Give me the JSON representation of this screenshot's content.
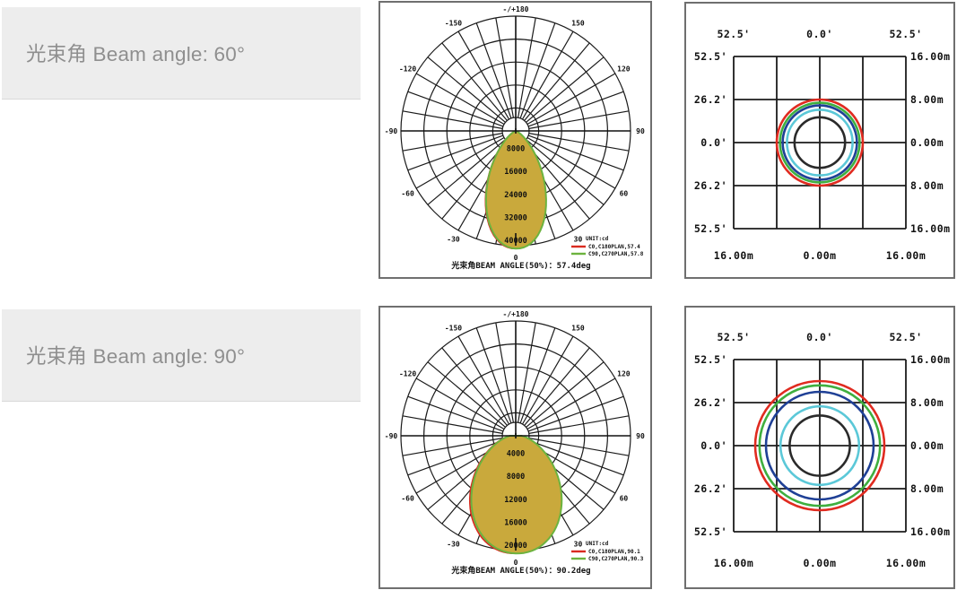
{
  "rows": [
    {
      "label": "光束角 Beam angle: 60°",
      "polar": {
        "top_label": "-/+180",
        "bottom_label": "0",
        "angle_labels": [
          {
            "deg": -150,
            "text": "-150"
          },
          {
            "deg": -120,
            "text": "-120"
          },
          {
            "deg": -90,
            "text": "-90"
          },
          {
            "deg": -60,
            "text": "-60"
          },
          {
            "deg": -30,
            "text": "-30"
          },
          {
            "deg": 30,
            "text": "30"
          },
          {
            "deg": 60,
            "text": "60"
          },
          {
            "deg": 90,
            "text": "90"
          },
          {
            "deg": 120,
            "text": "120"
          },
          {
            "deg": 150,
            "text": "150"
          }
        ],
        "unit_label": "UNIT:cd",
        "legend": [
          {
            "text": "C0,C180PLAN,57.4",
            "color": "#d92b20"
          },
          {
            "text": "C90,C270PLAN,57.8",
            "color": "#6cb33f"
          }
        ],
        "caption": "光束角BEAM ANGLE(50%)：57.4deg"
      },
      "spot": {
        "top_labels": [
          "52.5'",
          "0.0'",
          "52.5'"
        ],
        "left_labels": [
          "52.5'",
          "26.2'",
          "0.0'",
          "26.2'",
          "52.5'"
        ],
        "right_labels": [
          "16.00m",
          "8.00m",
          "0.00m",
          "8.00m",
          "16.00m"
        ],
        "bottom_labels": [
          "16.00m",
          "0.00m",
          "16.00m"
        ]
      }
    },
    {
      "label": "光束角 Beam angle: 90°",
      "polar": {
        "top_label": "-/+180",
        "bottom_label": "0",
        "angle_labels": [
          {
            "deg": -150,
            "text": "-150"
          },
          {
            "deg": -120,
            "text": "-120"
          },
          {
            "deg": -90,
            "text": "-90"
          },
          {
            "deg": -60,
            "text": "-60"
          },
          {
            "deg": -30,
            "text": "-30"
          },
          {
            "deg": 30,
            "text": "30"
          },
          {
            "deg": 60,
            "text": "60"
          },
          {
            "deg": 90,
            "text": "90"
          },
          {
            "deg": 120,
            "text": "120"
          },
          {
            "deg": 150,
            "text": "150"
          }
        ],
        "unit_label": "UNIT:cd",
        "legend": [
          {
            "text": "C0,C180PLAN,90.1",
            "color": "#d92b20"
          },
          {
            "text": "C90,C270PLAN,90.3",
            "color": "#6cb33f"
          }
        ],
        "caption": "光束角BEAM ANGLE(50%)：90.2deg"
      },
      "spot": {
        "top_labels": [
          "52.5'",
          "0.0'",
          "52.5'"
        ],
        "left_labels": [
          "52.5'",
          "26.2'",
          "0.0'",
          "26.2'",
          "52.5'"
        ],
        "right_labels": [
          "16.00m",
          "8.00m",
          "0.00m",
          "8.00m",
          "16.00m"
        ],
        "bottom_labels": [
          "16.00m",
          "0.00m",
          "16.00m"
        ]
      }
    }
  ],
  "chart_data": [
    {
      "type": "polar",
      "panel": "beam-60-intensity-distribution",
      "unit": "cd",
      "ring_values_cd": [
        8000,
        16000,
        24000,
        32000,
        40000
      ],
      "angle_ticks_deg": [
        -180,
        -150,
        -120,
        -90,
        -60,
        -30,
        0,
        30,
        60,
        90,
        120,
        150,
        180
      ],
      "peak_intensity_cd": 41000,
      "series": [
        {
          "name": "C0,C180PLAN",
          "beam_angle_50pct_deg": 57.4,
          "color": "#d92b20",
          "fill": "#ded196"
        },
        {
          "name": "C90,C270PLAN",
          "beam_angle_50pct_deg": 57.8,
          "color": "#6cb33f",
          "fill": "#c9a93c"
        }
      ],
      "caption": "光束角BEAM ANGLE(50%)：57.4deg"
    },
    {
      "type": "contour",
      "panel": "beam-60-spot-diagram",
      "x_range_m": [
        -16,
        16
      ],
      "y_range_m": [
        -16,
        16
      ],
      "grid_step_m": 8,
      "angle_ticks": [
        "52.5'",
        "26.2'",
        "0.0'"
      ],
      "contour_circles": [
        {
          "radius_m": 8.0,
          "color": "#e02b20"
        },
        {
          "radius_m": 7.4,
          "color": "#3faf3f"
        },
        {
          "radius_m": 6.9,
          "color": "#1f4096"
        },
        {
          "radius_m": 6.1,
          "color": "#5bc8d8"
        },
        {
          "radius_m": 4.7,
          "color": "#2a2a2a"
        }
      ]
    },
    {
      "type": "polar",
      "panel": "beam-90-intensity-distribution",
      "unit": "cd",
      "ring_values_cd": [
        4000,
        8000,
        12000,
        16000,
        20000
      ],
      "angle_ticks_deg": [
        -180,
        -150,
        -120,
        -90,
        -60,
        -30,
        0,
        30,
        60,
        90,
        120,
        150,
        180
      ],
      "peak_intensity_cd": 20500,
      "series": [
        {
          "name": "C0,C180PLAN",
          "beam_angle_50pct_deg": 90.1,
          "color": "#d92b20",
          "fill": "#ded196"
        },
        {
          "name": "C90,C270PLAN",
          "beam_angle_50pct_deg": 90.3,
          "color": "#6cb33f",
          "fill": "#c9a93c"
        }
      ],
      "caption": "光束角BEAM ANGLE(50%)：90.2deg"
    },
    {
      "type": "contour",
      "panel": "beam-90-spot-diagram",
      "x_range_m": [
        -16,
        16
      ],
      "y_range_m": [
        -16,
        16
      ],
      "grid_step_m": 8,
      "angle_ticks": [
        "52.5'",
        "26.2'",
        "0.0'"
      ],
      "contour_circles": [
        {
          "radius_m": 12.0,
          "color": "#e02b20"
        },
        {
          "radius_m": 11.2,
          "color": "#3faf3f"
        },
        {
          "radius_m": 10.0,
          "color": "#1f4096"
        },
        {
          "radius_m": 7.3,
          "color": "#5bc8d8"
        },
        {
          "radius_m": 5.6,
          "color": "#2a2a2a"
        }
      ]
    }
  ]
}
